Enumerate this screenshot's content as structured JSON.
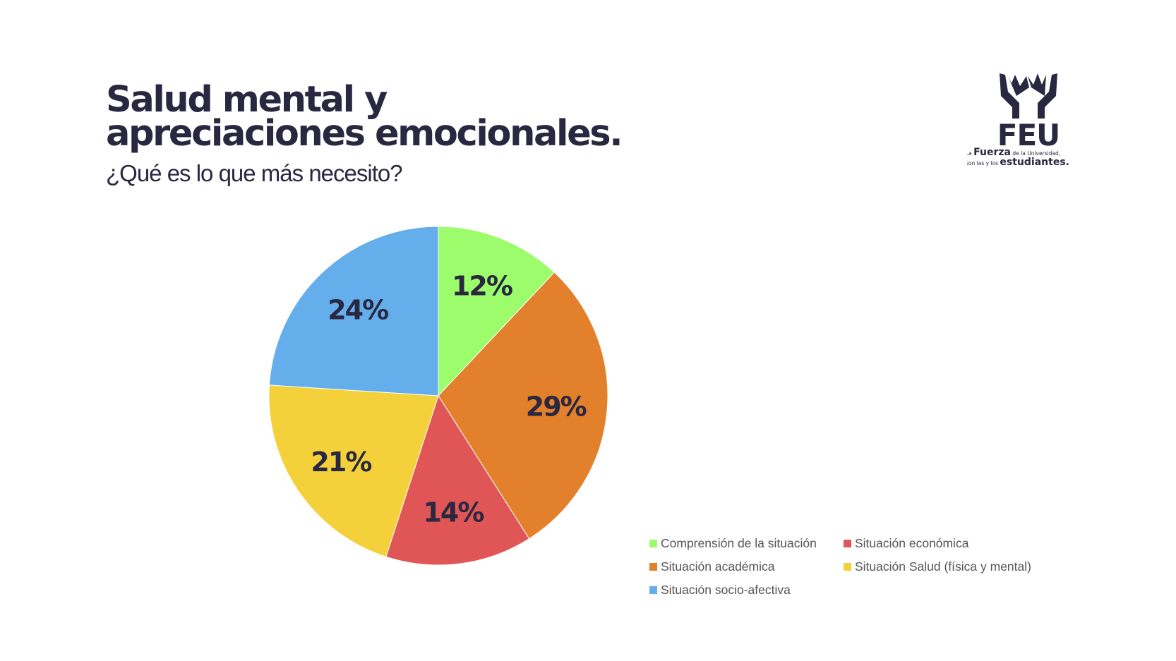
{
  "slide": {
    "title": "Salud mental y apreciaciones emocionales.",
    "subtitle": "¿Qué es lo que más necesito?"
  },
  "logo": {
    "name": "FEU",
    "tagline_line1_small": "La",
    "tagline_line1_bold": "Fuerza",
    "tagline_line1_rest": "de la Universidad,",
    "tagline_line2_small": "son las y los",
    "tagline_line2_bold": "estudiantes."
  },
  "chart_data": {
    "type": "pie",
    "title": "",
    "categories": [
      "Comprensión de la situación",
      "Situación académica",
      "Situación económica",
      "Situación Salud (física y mental)",
      "Situación socio-afectiva"
    ],
    "values": [
      12,
      29,
      14,
      21,
      24
    ],
    "labels": [
      "12%",
      "29%",
      "14%",
      "21%",
      "24%"
    ],
    "colors": [
      "#9cfc6b",
      "#e2802b",
      "#e05656",
      "#f4d13a",
      "#63aeeb"
    ],
    "start_angle": "12 o'clock",
    "direction": "clockwise",
    "legend_position": "bottom-right",
    "legend_order": [
      0,
      2,
      1,
      3,
      4
    ]
  }
}
